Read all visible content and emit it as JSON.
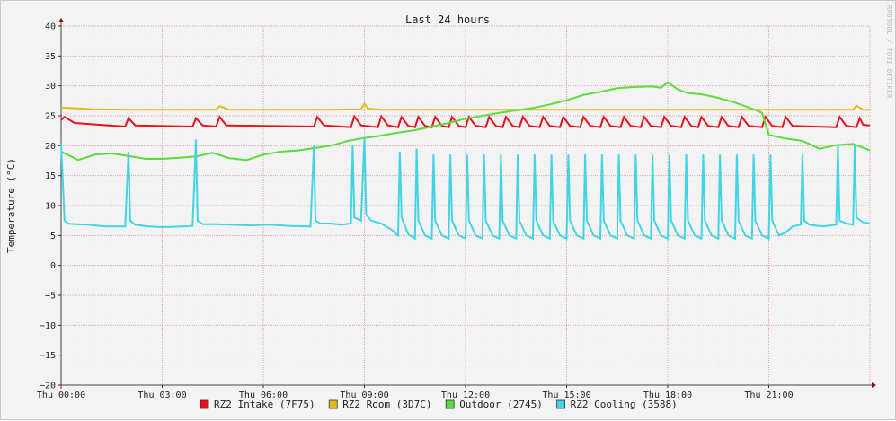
{
  "chart_data": {
    "type": "line",
    "title": "Last 24 hours",
    "ylabel": "Temperature (°C)",
    "xlabel": "",
    "watermark": "RRDTOOL / TOBI OETIKER",
    "ylim": [
      -20,
      40
    ],
    "y_ticks": [
      40,
      35,
      30,
      25,
      20,
      15,
      10,
      5,
      0,
      -5,
      -10,
      -15,
      -20
    ],
    "x_range_hours": [
      0,
      24
    ],
    "x_ticks": [
      {
        "h": 0,
        "label": "Thu 00:00"
      },
      {
        "h": 3,
        "label": "Thu 03:00"
      },
      {
        "h": 6,
        "label": "Thu 06:00"
      },
      {
        "h": 9,
        "label": "Thu 09:00"
      },
      {
        "h": 12,
        "label": "Thu 12:00"
      },
      {
        "h": 15,
        "label": "Thu 15:00"
      },
      {
        "h": 18,
        "label": "Thu 18:00"
      },
      {
        "h": 21,
        "label": "Thu 21:00"
      }
    ],
    "grid": true,
    "legend_position": "bottom",
    "series": [
      {
        "name": "RZ2 Intake (7F75)",
        "color": "#e8101a",
        "x": [
          0,
          0.1,
          0.4,
          1.9,
          2.0,
          2.2,
          3.9,
          4.0,
          4.2,
          4.6,
          4.7,
          4.9,
          7.5,
          7.6,
          7.8,
          8.6,
          8.7,
          8.9,
          9.4,
          9.5,
          9.7,
          10.0,
          10.1,
          10.3,
          10.5,
          10.6,
          10.8,
          11.0,
          11.1,
          11.3,
          11.5,
          11.6,
          11.8,
          12.0,
          12.1,
          12.3,
          12.6,
          12.7,
          12.9,
          13.1,
          13.2,
          13.4,
          13.6,
          13.7,
          13.9,
          14.2,
          14.3,
          14.5,
          14.8,
          14.9,
          15.1,
          15.4,
          15.5,
          15.7,
          16.0,
          16.1,
          16.3,
          16.6,
          16.7,
          16.9,
          17.2,
          17.3,
          17.5,
          17.8,
          17.9,
          18.1,
          18.4,
          18.5,
          18.7,
          18.9,
          19.0,
          19.2,
          19.5,
          19.6,
          19.8,
          20.1,
          20.2,
          20.4,
          20.8,
          20.9,
          21.1,
          21.4,
          21.5,
          21.7,
          23.0,
          23.1,
          23.3,
          23.6,
          23.7,
          23.8,
          24.0
        ],
        "y": [
          24.3,
          24.8,
          23.8,
          23.2,
          24.6,
          23.4,
          23.2,
          24.6,
          23.4,
          23.2,
          24.8,
          23.4,
          23.2,
          24.8,
          23.4,
          23.1,
          24.9,
          23.4,
          23.1,
          24.9,
          23.4,
          23.1,
          24.8,
          23.3,
          23.1,
          24.8,
          23.3,
          23.1,
          24.8,
          23.3,
          23.1,
          24.8,
          23.3,
          23.1,
          24.8,
          23.3,
          23.1,
          24.8,
          23.3,
          23.1,
          24.8,
          23.3,
          23.1,
          24.8,
          23.3,
          23.1,
          24.8,
          23.3,
          23.1,
          24.8,
          23.3,
          23.1,
          24.8,
          23.3,
          23.1,
          24.8,
          23.3,
          23.1,
          24.8,
          23.3,
          23.1,
          24.8,
          23.3,
          23.1,
          24.8,
          23.3,
          23.1,
          24.8,
          23.3,
          23.1,
          24.8,
          23.3,
          23.1,
          24.8,
          23.3,
          23.1,
          24.8,
          23.3,
          23.1,
          24.8,
          23.3,
          23.1,
          24.8,
          23.3,
          23.1,
          24.8,
          23.3,
          23.1,
          24.6,
          23.5,
          23.4
        ]
      },
      {
        "name": "RZ2 Room (3D7C)",
        "color": "#e7b81a",
        "x": [
          0,
          1.0,
          2.0,
          3.0,
          4.0,
          4.6,
          4.7,
          5.0,
          6.0,
          7.0,
          8.0,
          8.9,
          9.0,
          9.1,
          9.5,
          10.0,
          12.0,
          14.0,
          16.0,
          18.0,
          20.0,
          22.0,
          23.0,
          23.5,
          23.6,
          23.8,
          24.0
        ],
        "y": [
          26.4,
          26.1,
          26.0,
          26.0,
          26.0,
          26.0,
          26.6,
          26.0,
          26.0,
          26.0,
          26.0,
          26.1,
          27.0,
          26.2,
          26.0,
          26.0,
          26.0,
          26.0,
          26.0,
          26.0,
          26.0,
          26.0,
          26.0,
          26.0,
          26.7,
          26.0,
          26.0
        ]
      },
      {
        "name": "Outdoor (2745)",
        "color": "#5adc3c",
        "x": [
          0,
          0.3,
          0.5,
          1.0,
          1.5,
          2.0,
          2.5,
          3.0,
          3.5,
          4.0,
          4.5,
          5.0,
          5.5,
          6.0,
          6.5,
          7.0,
          7.5,
          8.0,
          8.5,
          9.0,
          9.5,
          10.0,
          10.5,
          11.0,
          11.5,
          12.0,
          12.5,
          13.0,
          13.5,
          14.0,
          14.5,
          15.0,
          15.5,
          16.0,
          16.5,
          17.0,
          17.5,
          17.8,
          18.0,
          18.3,
          18.6,
          19.0,
          19.5,
          20.0,
          20.3,
          20.5,
          20.8,
          21.0,
          21.5,
          22.0,
          22.5,
          23.0,
          23.5,
          24.0
        ],
        "y": [
          19.0,
          18.2,
          17.6,
          18.5,
          18.7,
          18.3,
          17.8,
          17.8,
          18.0,
          18.2,
          18.8,
          17.9,
          17.6,
          18.5,
          19.0,
          19.2,
          19.6,
          20.0,
          20.8,
          21.3,
          21.7,
          22.2,
          22.6,
          23.2,
          23.8,
          24.5,
          25.0,
          25.5,
          25.9,
          26.3,
          26.9,
          27.6,
          28.5,
          29.0,
          29.6,
          29.8,
          29.9,
          29.7,
          30.6,
          29.4,
          28.8,
          28.6,
          28.0,
          27.2,
          26.6,
          26.2,
          25.5,
          21.8,
          21.2,
          20.8,
          19.5,
          20.1,
          20.3,
          19.2
        ]
      },
      {
        "name": "RZ2 Cooling (3588)",
        "color": "#42d4e4",
        "x": [
          0,
          0.05,
          0.1,
          0.2,
          0.4,
          0.8,
          1.3,
          1.9,
          2.0,
          2.05,
          2.2,
          2.6,
          3.0,
          3.6,
          3.9,
          4.0,
          4.05,
          4.2,
          4.6,
          5.0,
          5.6,
          6.2,
          6.8,
          7.4,
          7.5,
          7.55,
          7.7,
          8.0,
          8.3,
          8.6,
          8.65,
          8.7,
          8.9,
          9.0,
          9.05,
          9.2,
          9.5,
          9.8,
          10.0,
          10.05,
          10.1,
          10.3,
          10.5,
          10.55,
          10.6,
          10.8,
          11.0,
          11.05,
          11.1,
          11.3,
          11.5,
          11.55,
          11.6,
          11.8,
          12.0,
          12.05,
          12.1,
          12.3,
          12.5,
          12.55,
          12.6,
          12.8,
          13.0,
          13.05,
          13.1,
          13.3,
          13.5,
          13.55,
          13.6,
          13.8,
          14.0,
          14.05,
          14.1,
          14.3,
          14.5,
          14.55,
          14.6,
          14.8,
          15.0,
          15.05,
          15.1,
          15.3,
          15.5,
          15.55,
          15.6,
          15.8,
          16.0,
          16.05,
          16.1,
          16.3,
          16.5,
          16.55,
          16.6,
          16.8,
          17.0,
          17.05,
          17.1,
          17.3,
          17.5,
          17.55,
          17.6,
          17.8,
          18.0,
          18.05,
          18.1,
          18.3,
          18.5,
          18.55,
          18.6,
          18.8,
          19.0,
          19.05,
          19.1,
          19.3,
          19.5,
          19.55,
          19.6,
          19.8,
          20.0,
          20.05,
          20.1,
          20.3,
          20.5,
          20.55,
          20.6,
          20.8,
          21.0,
          21.05,
          21.1,
          21.3,
          21.5,
          21.7,
          21.95,
          22.0,
          22.05,
          22.2,
          22.6,
          23.0,
          23.05,
          23.1,
          23.3,
          23.5,
          23.55,
          23.6,
          23.8,
          24.0
        ],
        "y": [
          20.5,
          14.0,
          7.5,
          7.0,
          6.9,
          6.8,
          6.5,
          6.5,
          19.0,
          7.5,
          6.8,
          6.5,
          6.4,
          6.5,
          6.6,
          21.0,
          7.5,
          6.9,
          6.9,
          6.8,
          6.7,
          6.8,
          6.6,
          6.5,
          20.0,
          7.5,
          7.0,
          7.0,
          6.8,
          7.0,
          20.0,
          8.0,
          7.5,
          21.5,
          8.5,
          7.5,
          7.0,
          6.0,
          5.0,
          19.0,
          8.0,
          5.2,
          4.5,
          19.5,
          7.5,
          5.0,
          4.5,
          18.5,
          7.5,
          5.0,
          4.5,
          18.5,
          7.5,
          5.0,
          4.5,
          18.5,
          7.5,
          5.0,
          4.5,
          18.5,
          7.5,
          5.0,
          4.5,
          18.5,
          7.5,
          5.0,
          4.5,
          18.5,
          7.5,
          5.0,
          4.5,
          18.5,
          7.5,
          5.0,
          4.5,
          18.5,
          7.5,
          5.0,
          4.5,
          18.5,
          7.5,
          5.0,
          4.5,
          18.5,
          7.5,
          5.0,
          4.5,
          18.5,
          7.5,
          5.0,
          4.5,
          18.5,
          7.5,
          5.0,
          4.5,
          18.5,
          7.5,
          5.0,
          4.5,
          18.5,
          7.5,
          5.0,
          4.5,
          18.5,
          7.5,
          5.0,
          4.5,
          18.5,
          7.5,
          5.0,
          4.5,
          18.5,
          7.5,
          5.0,
          4.5,
          18.5,
          7.5,
          5.0,
          4.5,
          18.5,
          7.5,
          5.0,
          4.5,
          18.5,
          7.5,
          5.0,
          4.5,
          18.5,
          7.5,
          5.0,
          5.5,
          6.5,
          6.8,
          18.5,
          7.5,
          6.8,
          6.5,
          6.8,
          20.0,
          7.5,
          7.0,
          6.8,
          20.0,
          8.0,
          7.2,
          7.0
        ]
      }
    ]
  }
}
